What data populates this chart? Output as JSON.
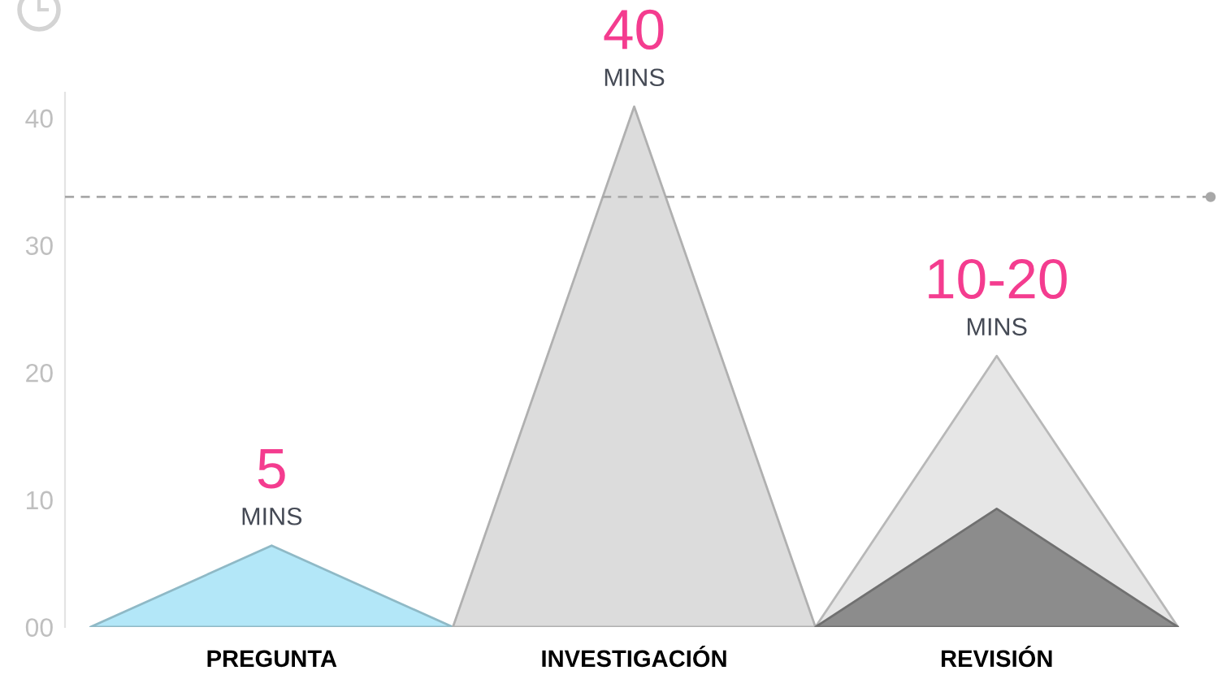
{
  "chart_data": {
    "type": "area",
    "categories": [
      null,
      "PREGUNTA",
      null,
      "INVESTIGACIÓN",
      null,
      "REVISIÓN",
      null
    ],
    "series": [
      {
        "values": [
          0,
          6.4,
          0,
          null,
          null,
          null,
          null
        ],
        "color": "#b3e7f8"
      },
      {
        "values": [
          null,
          null,
          0,
          40.9,
          0,
          null,
          null
        ],
        "color": "#dcdcdc"
      },
      {
        "values": [
          null,
          null,
          null,
          null,
          0,
          21.3,
          0
        ],
        "color": "#e6e6e6"
      },
      {
        "values": [
          null,
          null,
          null,
          null,
          0,
          9.3,
          0
        ],
        "color": "#8c8c8c"
      }
    ],
    "ylim": [
      0,
      42
    ],
    "yticks": [
      {
        "value": 0,
        "label": "00"
      },
      10,
      20,
      30,
      40
    ],
    "ref_lines": [
      {
        "axis": "y",
        "value": 33.8,
        "color": "#a8a8a8",
        "line_style": "dashed"
      }
    ],
    "annotations": [
      "5",
      "MINS",
      "40",
      "MINS",
      "10-20",
      "MINS"
    ]
  }
}
